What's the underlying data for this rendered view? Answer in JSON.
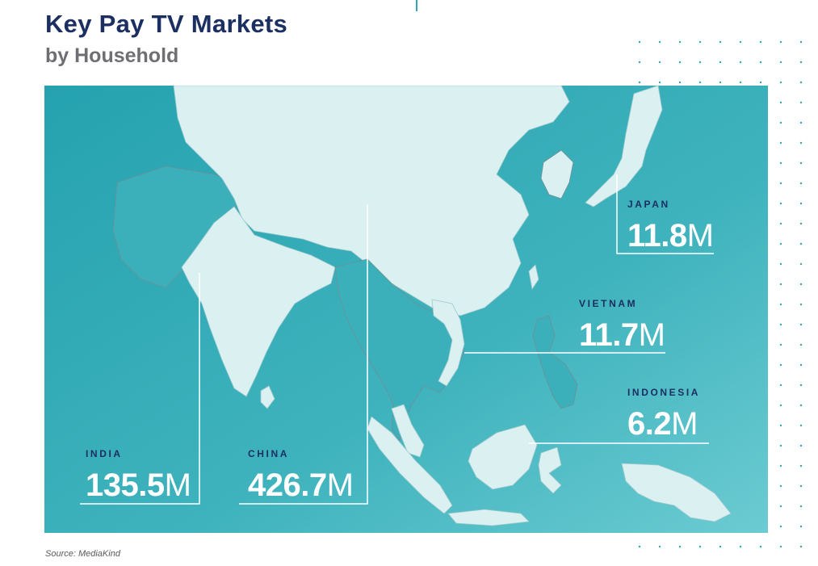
{
  "header": {
    "title": "Key Pay TV Markets",
    "subtitle": "by Household"
  },
  "markets": [
    {
      "country": "JAPAN",
      "value": "11.8",
      "unit": "M"
    },
    {
      "country": "VIETNAM",
      "value": "11.7",
      "unit": "M"
    },
    {
      "country": "INDONESIA",
      "value": "6.2",
      "unit": "M"
    },
    {
      "country": "INDIA",
      "value": "135.5",
      "unit": "M"
    },
    {
      "country": "CHINA",
      "value": "426.7",
      "unit": "M"
    }
  ],
  "footer": {
    "source": "Source: MediaKind"
  },
  "colors": {
    "title": "#1c2f62",
    "sea_dark": "#2aa8b4",
    "sea_light": "#66c8cf",
    "land": "#daf0f1"
  }
}
